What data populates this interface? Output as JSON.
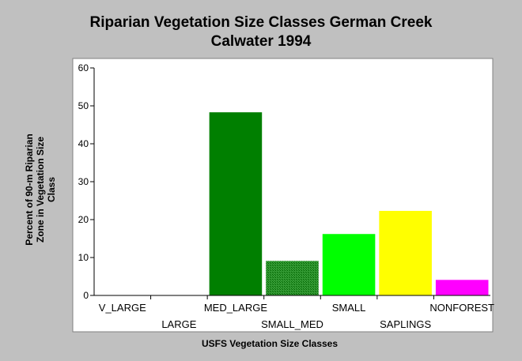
{
  "chart_data": {
    "type": "bar",
    "title": "Riparian Vegetation Size Classes German Creek",
    "subtitle": "Calwater 1994",
    "xlabel": "USFS Vegetation Size Classes",
    "ylabel_lines": [
      "Percent of 90-m Riparian",
      "Zone in Vegetation Size",
      "Class"
    ],
    "ylim": [
      0,
      60
    ],
    "yticks": [
      "0",
      "10",
      "20",
      "30",
      "40",
      "50",
      "60"
    ],
    "grid": false,
    "legend": "none",
    "categories": [
      "V_LARGE",
      "LARGE",
      "MED_LARGE",
      "SMALL_MED",
      "SMALL",
      "SAPLINGS",
      "NONFOREST"
    ],
    "values": [
      0,
      0,
      48.3,
      9.1,
      16.2,
      22.3,
      4.1
    ],
    "colors": [
      "#0000ff",
      "#0000ff",
      "#007f00",
      "#1a8c1a",
      "#00ff00",
      "#ffff00",
      "#ff00ff"
    ]
  }
}
